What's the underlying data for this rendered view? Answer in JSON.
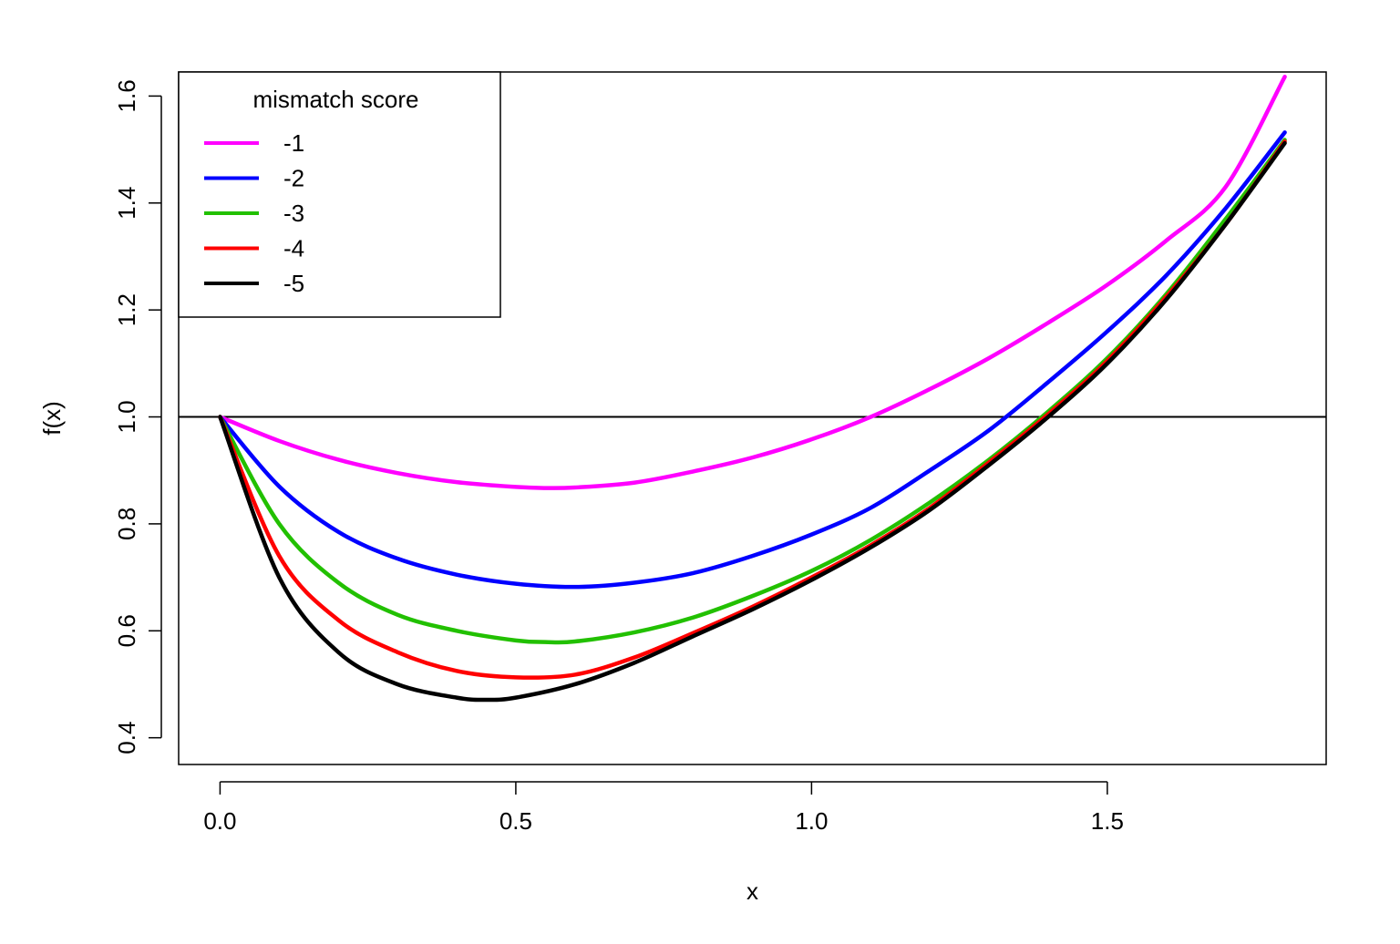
{
  "chart_data": {
    "type": "line",
    "title": "",
    "xlabel": "x",
    "ylabel": "f(x)",
    "xlim": [
      -0.07,
      1.87
    ],
    "ylim": [
      0.35,
      1.645
    ],
    "xticks": [
      0.0,
      0.5,
      1.0,
      1.5
    ],
    "xtick_labels": [
      "0.0",
      "0.5",
      "1.0",
      "1.5"
    ],
    "yticks": [
      0.4,
      0.6,
      0.8,
      1.0,
      1.2,
      1.4,
      1.6
    ],
    "ytick_labels": [
      "0.4",
      "0.6",
      "0.8",
      "1.0",
      "1.2",
      "1.4",
      "1.6"
    ],
    "reference_line": {
      "y": 1.0,
      "color": "#000000"
    },
    "grid": false,
    "legend": {
      "title": "mismatch score",
      "position": "top-left"
    },
    "series": [
      {
        "name": "-1",
        "color": "#ff00ff",
        "x": [
          0.0,
          0.1,
          0.2,
          0.3,
          0.4,
          0.5,
          0.55,
          0.6,
          0.7,
          0.8,
          0.9,
          1.0,
          1.1,
          1.2,
          1.3,
          1.4,
          1.5,
          1.6,
          1.7,
          1.8
        ],
        "y": [
          1.0,
          0.955,
          0.92,
          0.895,
          0.878,
          0.869,
          0.867,
          0.868,
          0.877,
          0.898,
          0.924,
          0.958,
          1.0,
          1.052,
          1.11,
          1.176,
          1.247,
          1.33,
          1.43,
          1.636
        ]
      },
      {
        "name": "-2",
        "color": "#0000ff",
        "x": [
          0.0,
          0.1,
          0.2,
          0.3,
          0.4,
          0.5,
          0.6,
          0.7,
          0.8,
          0.9,
          1.0,
          1.1,
          1.2,
          1.3,
          1.4,
          1.5,
          1.6,
          1.7,
          1.8
        ],
        "y": [
          1.0,
          0.87,
          0.785,
          0.735,
          0.705,
          0.688,
          0.682,
          0.69,
          0.708,
          0.74,
          0.78,
          0.83,
          0.9,
          0.975,
          1.065,
          1.16,
          1.265,
          1.39,
          1.532
        ]
      },
      {
        "name": "-3",
        "color": "#22c000",
        "x": [
          0.0,
          0.1,
          0.2,
          0.3,
          0.4,
          0.5,
          0.55,
          0.6,
          0.7,
          0.8,
          0.9,
          1.0,
          1.1,
          1.2,
          1.3,
          1.4,
          1.5,
          1.6,
          1.7,
          1.8
        ],
        "y": [
          1.0,
          0.8,
          0.69,
          0.63,
          0.6,
          0.582,
          0.579,
          0.58,
          0.597,
          0.625,
          0.665,
          0.712,
          0.77,
          0.84,
          0.92,
          1.01,
          1.11,
          1.23,
          1.37,
          1.518
        ]
      },
      {
        "name": "-4",
        "color": "#ff0000",
        "x": [
          0.0,
          0.1,
          0.2,
          0.3,
          0.4,
          0.5,
          0.6,
          0.7,
          0.8,
          0.9,
          1.0,
          1.1,
          1.2,
          1.3,
          1.4,
          1.5,
          1.6,
          1.7,
          1.8
        ],
        "y": [
          1.0,
          0.74,
          0.62,
          0.56,
          0.525,
          0.513,
          0.518,
          0.55,
          0.596,
          0.645,
          0.7,
          0.76,
          0.83,
          0.915,
          1.005,
          1.105,
          1.225,
          1.36,
          1.515
        ]
      },
      {
        "name": "-5",
        "color": "#000000",
        "x": [
          0.0,
          0.1,
          0.2,
          0.3,
          0.4,
          0.45,
          0.5,
          0.6,
          0.7,
          0.8,
          0.9,
          1.0,
          1.1,
          1.2,
          1.3,
          1.4,
          1.5,
          1.6,
          1.7,
          1.8
        ],
        "y": [
          1.0,
          0.7,
          0.56,
          0.5,
          0.475,
          0.471,
          0.475,
          0.5,
          0.54,
          0.59,
          0.64,
          0.695,
          0.756,
          0.826,
          0.91,
          1.0,
          1.1,
          1.22,
          1.36,
          1.512
        ]
      }
    ]
  }
}
